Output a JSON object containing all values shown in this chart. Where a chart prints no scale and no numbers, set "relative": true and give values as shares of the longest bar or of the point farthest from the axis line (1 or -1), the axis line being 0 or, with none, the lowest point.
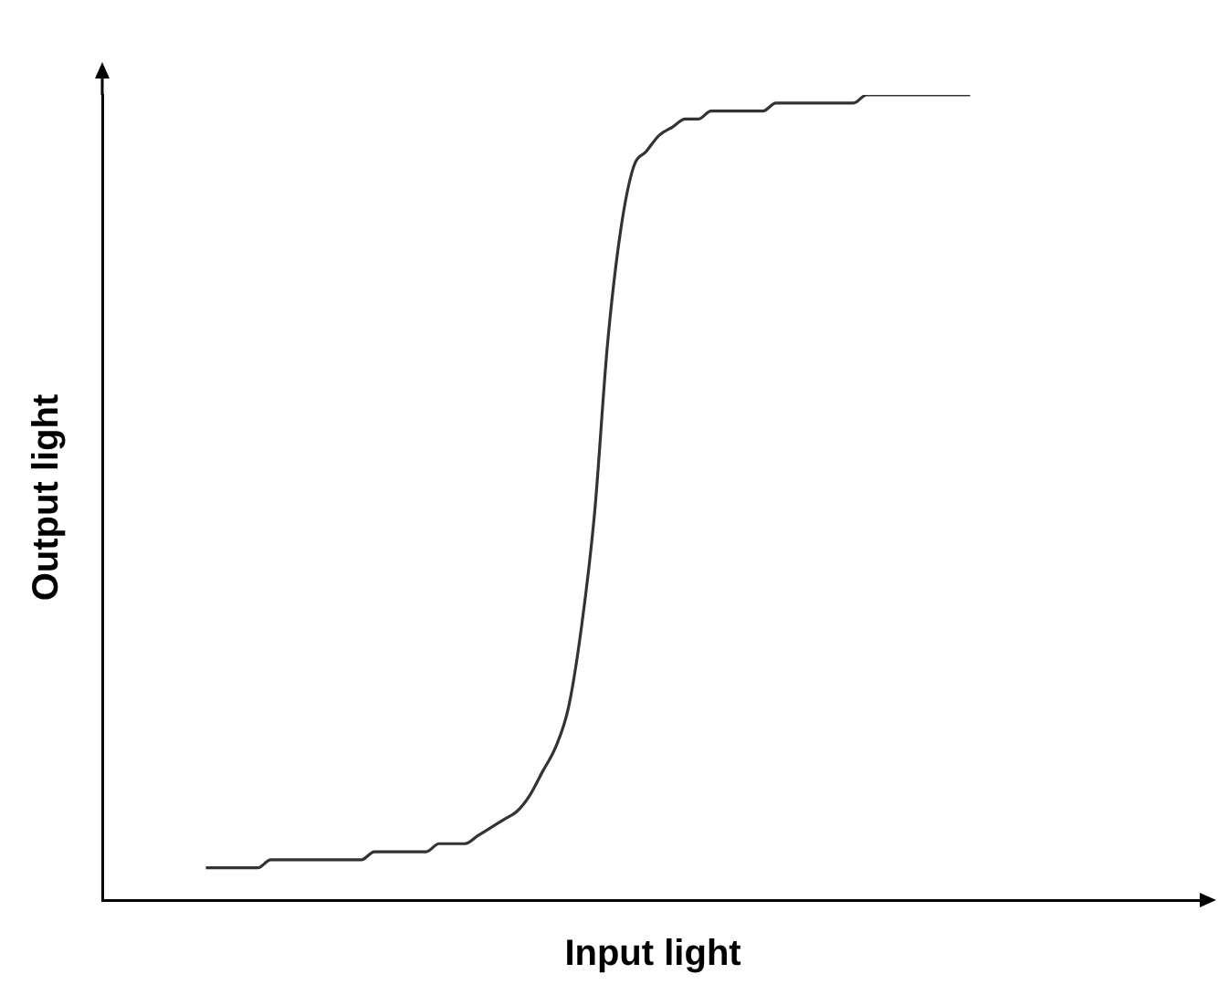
{
  "chart_data": {
    "type": "line",
    "xlabel": "Input light",
    "ylabel": "Output light",
    "relative": true,
    "grid": false,
    "marker": "none",
    "color": "#333333",
    "categories": [
      null,
      null,
      null,
      null,
      null,
      null,
      null,
      null,
      null,
      null,
      null,
      null,
      null,
      null,
      null,
      null,
      null,
      null,
      null,
      null,
      null,
      null,
      null,
      null,
      null,
      null,
      null,
      null,
      null,
      null,
      null,
      null,
      null,
      null,
      null,
      null,
      null,
      null,
      null,
      null,
      null,
      null,
      null,
      null,
      null,
      null,
      null,
      null,
      null,
      null,
      null,
      null,
      null,
      null,
      null,
      null,
      null,
      null,
      null,
      null,
      null,
      null,
      null,
      null,
      null,
      null,
      null,
      null,
      null,
      null,
      null,
      null,
      null,
      null,
      null,
      null,
      null,
      null,
      null,
      null,
      null,
      null,
      null,
      null,
      null,
      null
    ],
    "values": [
      null,
      null,
      null,
      null,
      null,
      null,
      null,
      null,
      0.04,
      0.04,
      0.04,
      0.04,
      0.04,
      0.05,
      0.05,
      0.05,
      0.05,
      0.05,
      0.05,
      0.05,
      0.05,
      0.06,
      0.06,
      0.06,
      0.06,
      0.06,
      0.07,
      0.07,
      0.07,
      0.08,
      0.09,
      0.1,
      0.11,
      0.13,
      0.16,
      0.19,
      0.24,
      0.34,
      0.48,
      0.69,
      0.83,
      0.91,
      0.93,
      0.95,
      0.96,
      0.97,
      0.97,
      0.98,
      0.98,
      0.98,
      0.98,
      0.98,
      0.99,
      0.99,
      0.99,
      0.99,
      0.99,
      0.99,
      0.99,
      1,
      1,
      1,
      1,
      1,
      1,
      1,
      1,
      1,
      null,
      null,
      null,
      null,
      null,
      null,
      null,
      null,
      null,
      null,
      null,
      null,
      null,
      null,
      null,
      null,
      null,
      null
    ]
  }
}
